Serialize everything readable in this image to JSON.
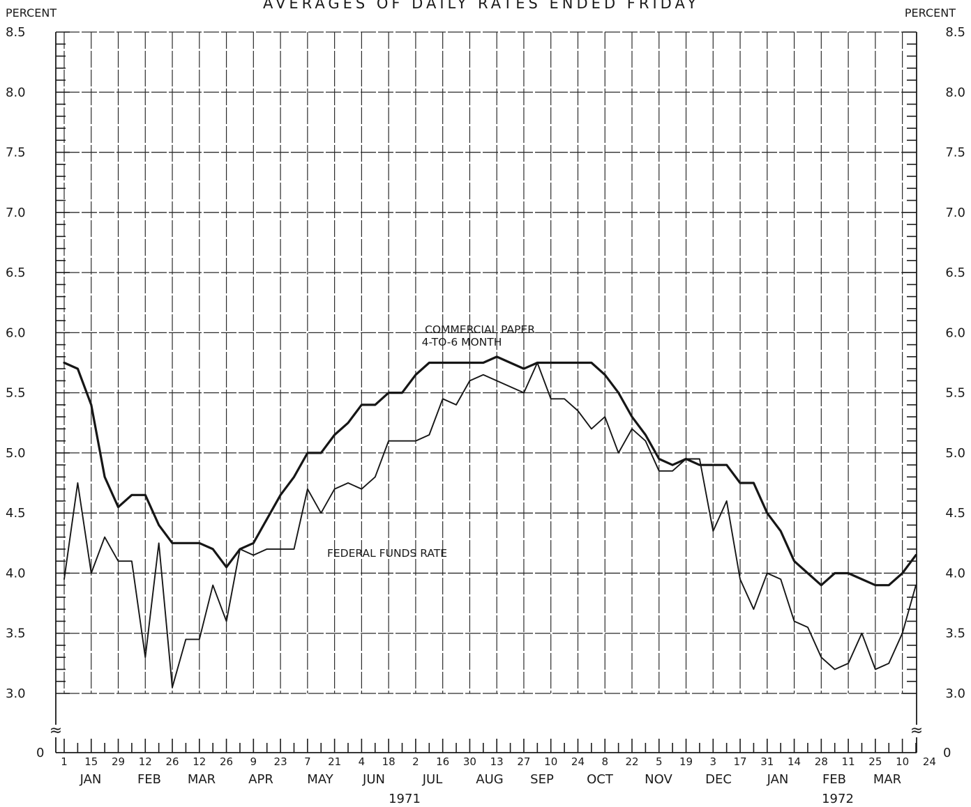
{
  "chart_data": {
    "type": "line",
    "title": "AVERAGES OF DAILY RATES ENDED FRIDAY",
    "ylabel_left": "PERCENT",
    "ylabel_right": "PERCENT",
    "ylim": [
      3.0,
      8.5
    ],
    "y_ticks": [
      "8.5",
      "8.0",
      "7.5",
      "7.0",
      "6.5",
      "6.0",
      "5.5",
      "5.0",
      "4.5",
      "4.0",
      "3.5",
      "3.0"
    ],
    "y_zero_label": "0",
    "y_break_symbol": "≈",
    "grid": true,
    "x_day_labels": [
      "1",
      "15",
      "29",
      "12",
      "26",
      "12",
      "26",
      "9",
      "23",
      "7",
      "21",
      "4",
      "18",
      "2",
      "16",
      "30",
      "13",
      "27",
      "10",
      "24",
      "8",
      "22",
      "5",
      "19",
      "3",
      "17",
      "31",
      "14",
      "28",
      "11",
      "25",
      "10",
      "24"
    ],
    "x_month_labels": [
      "JAN",
      "FEB",
      "MAR",
      "APR",
      "MAY",
      "JUN",
      "JUL",
      "AUG",
      "SEP",
      "OCT",
      "NOV",
      "DEC",
      "JAN",
      "FEB",
      "MAR"
    ],
    "x_year_labels": [
      "1971",
      "1972"
    ],
    "x_weeks": [
      "1971-01-01",
      "1971-01-08",
      "1971-01-15",
      "1971-01-22",
      "1971-01-29",
      "1971-02-05",
      "1971-02-12",
      "1971-02-19",
      "1971-02-26",
      "1971-03-05",
      "1971-03-12",
      "1971-03-19",
      "1971-03-26",
      "1971-04-02",
      "1971-04-09",
      "1971-04-16",
      "1971-04-23",
      "1971-04-30",
      "1971-05-07",
      "1971-05-14",
      "1971-05-21",
      "1971-05-28",
      "1971-06-04",
      "1971-06-11",
      "1971-06-18",
      "1971-06-25",
      "1971-07-02",
      "1971-07-09",
      "1971-07-16",
      "1971-07-23",
      "1971-07-30",
      "1971-08-06",
      "1971-08-13",
      "1971-08-20",
      "1971-08-27",
      "1971-09-03",
      "1971-09-10",
      "1971-09-17",
      "1971-09-24",
      "1971-10-01",
      "1971-10-08",
      "1971-10-15",
      "1971-10-22",
      "1971-10-29",
      "1971-11-05",
      "1971-11-12",
      "1971-11-19",
      "1971-11-26",
      "1971-12-03",
      "1971-12-10",
      "1971-12-17",
      "1971-12-24",
      "1971-12-31",
      "1972-01-07",
      "1972-01-14",
      "1972-01-21",
      "1972-01-28",
      "1972-02-04",
      "1972-02-11",
      "1972-02-18",
      "1972-02-25",
      "1972-03-03",
      "1972-03-10",
      "1972-03-17"
    ],
    "series": [
      {
        "name": "COMMERCIAL PAPER 4-TO-6 MONTH",
        "stroke_width": "heavy",
        "values": [
          5.75,
          5.7,
          5.4,
          4.8,
          4.55,
          4.65,
          4.65,
          4.4,
          4.25,
          4.25,
          4.25,
          4.2,
          4.05,
          4.2,
          4.25,
          4.45,
          4.65,
          4.8,
          5.0,
          5.0,
          5.15,
          5.25,
          5.4,
          5.4,
          5.5,
          5.5,
          5.65,
          5.75,
          5.75,
          5.75,
          5.75,
          5.75,
          5.8,
          5.75,
          5.7,
          5.75,
          5.75,
          5.75,
          5.75,
          5.75,
          5.65,
          5.5,
          5.3,
          5.15,
          4.95,
          4.9,
          4.95,
          4.9,
          4.9,
          4.9,
          4.75,
          4.75,
          4.5,
          4.35,
          4.1,
          4.0,
          3.9,
          4.0,
          4.0,
          3.95,
          3.9,
          3.9,
          4.0,
          4.15
        ]
      },
      {
        "name": "FEDERAL FUNDS RATE",
        "stroke_width": "light",
        "values": [
          3.95,
          4.75,
          4.0,
          4.3,
          4.1,
          4.1,
          3.3,
          4.25,
          3.05,
          3.45,
          3.45,
          3.9,
          3.6,
          4.2,
          4.15,
          4.2,
          4.2,
          4.2,
          4.7,
          4.5,
          4.7,
          4.75,
          4.7,
          4.8,
          5.1,
          5.1,
          5.1,
          5.15,
          5.45,
          5.4,
          5.6,
          5.65,
          5.6,
          5.55,
          5.5,
          5.75,
          5.45,
          5.45,
          5.35,
          5.2,
          5.3,
          5.0,
          5.2,
          5.1,
          4.85,
          4.85,
          4.95,
          4.95,
          4.35,
          4.6,
          3.95,
          3.7,
          4.0,
          3.95,
          3.6,
          3.55,
          3.3,
          3.2,
          3.25,
          3.5,
          3.2,
          3.25,
          3.5,
          3.9
        ]
      }
    ],
    "annotations": [
      {
        "text": "COMMERCIAL PAPER",
        "series": 0
      },
      {
        "text": "4-TO-6 MONTH",
        "series": 0
      },
      {
        "text": "FEDERAL FUNDS RATE",
        "series": 1
      }
    ]
  }
}
